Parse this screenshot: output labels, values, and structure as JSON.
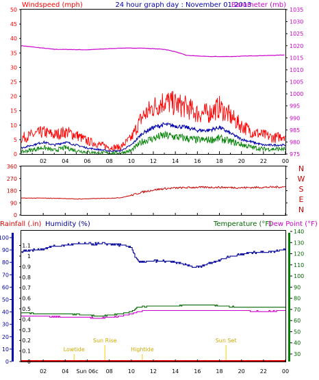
{
  "title": "24 hour graph day : November 01 2013",
  "colors": {
    "wind": "#ff0000",
    "gust": "#ff0000",
    "avg": "#0000aa",
    "windGreen": "#008000",
    "baro": "#cc00cc",
    "dir": "#cc0000",
    "rain": "#dd0000",
    "hum": "#000099",
    "temp": "#006600",
    "dew": "#cc00cc",
    "annot": "#ffcc00",
    "frame": "#000000",
    "grid": "#aaaaaa"
  },
  "chart_data": [
    {
      "type": "line",
      "name": "wind-baro",
      "labels": {
        "left": "Windspeed (mph)",
        "right": "Barometer (mb)"
      },
      "x_ticks": [
        "02",
        "04",
        "06",
        "08",
        "10",
        "12",
        "14",
        "16",
        "18",
        "20",
        "22",
        "00"
      ],
      "y_left_ticks": [
        "0",
        "5",
        "10",
        "15",
        "20",
        "25",
        "30",
        "35",
        "40",
        "45",
        "50"
      ],
      "y_right_ticks": [
        "975",
        "980",
        "985",
        "990",
        "995",
        "1000",
        "1005",
        "1010",
        "1015",
        "1020",
        "1025",
        "1030",
        "1035"
      ],
      "ylim_left": [
        0,
        50
      ],
      "ylim_right": [
        975,
        1035
      ],
      "xlim": [
        0,
        24
      ],
      "barometer": {
        "x": [
          0,
          3,
          6,
          9,
          11,
          13,
          14,
          15,
          17,
          19,
          21,
          23,
          24
        ],
        "y": [
          1020,
          1018.5,
          1018.3,
          1019,
          1019,
          1018.5,
          1017.5,
          1016,
          1015.5,
          1015.5,
          1015.8,
          1016,
          1016.2
        ]
      },
      "gust_envelope": {
        "x": [
          0,
          2,
          3,
          4,
          5,
          6,
          7,
          8,
          9,
          10,
          11,
          12,
          13,
          14,
          15,
          16,
          17,
          18,
          19,
          20,
          21,
          22,
          23,
          24
        ],
        "y": [
          5,
          7,
          6,
          7,
          6,
          4,
          3,
          2,
          2,
          5,
          12,
          15,
          17,
          16,
          15,
          13,
          13,
          15,
          12,
          9,
          7,
          6,
          5,
          6
        ]
      },
      "average": {
        "x": [
          0,
          2,
          3,
          4,
          5,
          6,
          7,
          8,
          9,
          10,
          11,
          12,
          13,
          14,
          15,
          16,
          17,
          18,
          19,
          20,
          21,
          22,
          23,
          24
        ],
        "y": [
          2,
          4,
          3,
          4,
          3,
          2,
          1.5,
          1,
          1,
          3,
          7,
          9,
          10,
          9.5,
          9,
          8,
          8,
          9,
          7,
          5,
          4,
          3,
          3,
          3
        ]
      },
      "speed": {
        "x": [
          0,
          2,
          3,
          4,
          5,
          6,
          7,
          8,
          9,
          10,
          11,
          12,
          13,
          14,
          15,
          16,
          17,
          18,
          19,
          20,
          21,
          22,
          23,
          24
        ],
        "y": [
          0.5,
          2,
          1,
          2,
          1,
          0.5,
          0.3,
          0.2,
          0.2,
          1,
          4,
          5,
          6,
          5.5,
          5,
          4.5,
          4.5,
          5,
          4,
          3,
          2,
          1.5,
          1.5,
          1.5
        ]
      }
    },
    {
      "type": "line",
      "name": "wind-direction",
      "x_ticks": [
        "02",
        "04",
        "06",
        "08",
        "10",
        "12",
        "14",
        "16",
        "18",
        "20",
        "22",
        "00"
      ],
      "y_ticks": [
        "0",
        "90",
        "180",
        "270",
        "360"
      ],
      "compass": [
        "N",
        "W",
        "S",
        "E",
        "N"
      ],
      "ylim": [
        0,
        360
      ],
      "xlim": [
        0,
        24
      ],
      "direction": {
        "x": [
          0,
          2,
          4,
          5,
          6,
          7,
          8,
          9,
          10,
          11,
          12,
          13,
          14,
          16,
          18,
          20,
          22,
          24
        ],
        "y": [
          125,
          125,
          122,
          118,
          120,
          122,
          124,
          128,
          145,
          170,
          185,
          195,
          200,
          205,
          205,
          202,
          205,
          208
        ]
      }
    },
    {
      "type": "line",
      "name": "rain-hum-temp",
      "labels": {
        "rain": "Rainfall (.in)",
        "hum": "Humidity (%)",
        "temp": "Temperature (°F)",
        "dew": "Dew Point (°F)"
      },
      "x_ticks": [
        "02",
        "04",
        "Sun 06c",
        "08",
        "10",
        "12",
        "14",
        "16",
        "18",
        "20",
        "22",
        "00"
      ],
      "y_rain_ticks": [
        "0",
        "0.1",
        "0.2",
        "0.3",
        "0.4",
        "0.5",
        "0.6",
        "0.7",
        "0.8",
        "0.9",
        "1",
        "1.1"
      ],
      "y_hum_ticks": [
        "0",
        "10",
        "20",
        "30",
        "40",
        "50",
        "60",
        "70",
        "80",
        "90",
        "100"
      ],
      "y_temp_ticks": [
        "30",
        "40",
        "50",
        "60",
        "70",
        "80",
        "90",
        "100",
        "110",
        "120",
        "130",
        "140"
      ],
      "ylim_hum": [
        0,
        100
      ],
      "ylim_temp": [
        30,
        140
      ],
      "xlim": [
        0,
        24
      ],
      "annotations": [
        {
          "label": "Lowtide",
          "x": 4.8
        },
        {
          "label": "Sun Rise",
          "x": 7.6
        },
        {
          "label": "Hightide",
          "x": 11.0
        },
        {
          "label": "Sun Set",
          "x": 18.6
        }
      ],
      "humidity": {
        "x": [
          0,
          2,
          3,
          5,
          8,
          9,
          10,
          10.3,
          10.7,
          12,
          13,
          14,
          15,
          15.7,
          16.3,
          17,
          19,
          21,
          23,
          24
        ],
        "y": [
          89,
          91,
          93,
          95,
          95,
          94,
          92,
          85,
          80,
          81,
          81,
          80,
          78,
          76,
          77,
          79,
          85,
          88,
          89,
          91
        ]
      },
      "temperature": {
        "x": [
          0,
          2,
          4,
          6,
          7,
          8,
          9,
          10,
          10.6,
          12,
          14,
          15,
          16,
          17,
          18,
          20,
          22,
          24
        ],
        "y": [
          67,
          66,
          66,
          65,
          64,
          65,
          66,
          68,
          72,
          73,
          73,
          74,
          74,
          74,
          73,
          72,
          72,
          72
        ]
      },
      "dewpoint": {
        "x": [
          0,
          2,
          4,
          6,
          7,
          8,
          9,
          10,
          10.6,
          12,
          14,
          16,
          18,
          20,
          22,
          24
        ],
        "y": [
          64,
          64,
          63,
          63,
          62,
          63,
          64,
          66,
          68,
          69,
          69,
          69,
          69,
          69,
          68,
          69
        ]
      },
      "rainfall": {
        "x": [
          0,
          24
        ],
        "y": [
          0,
          0
        ]
      }
    }
  ]
}
